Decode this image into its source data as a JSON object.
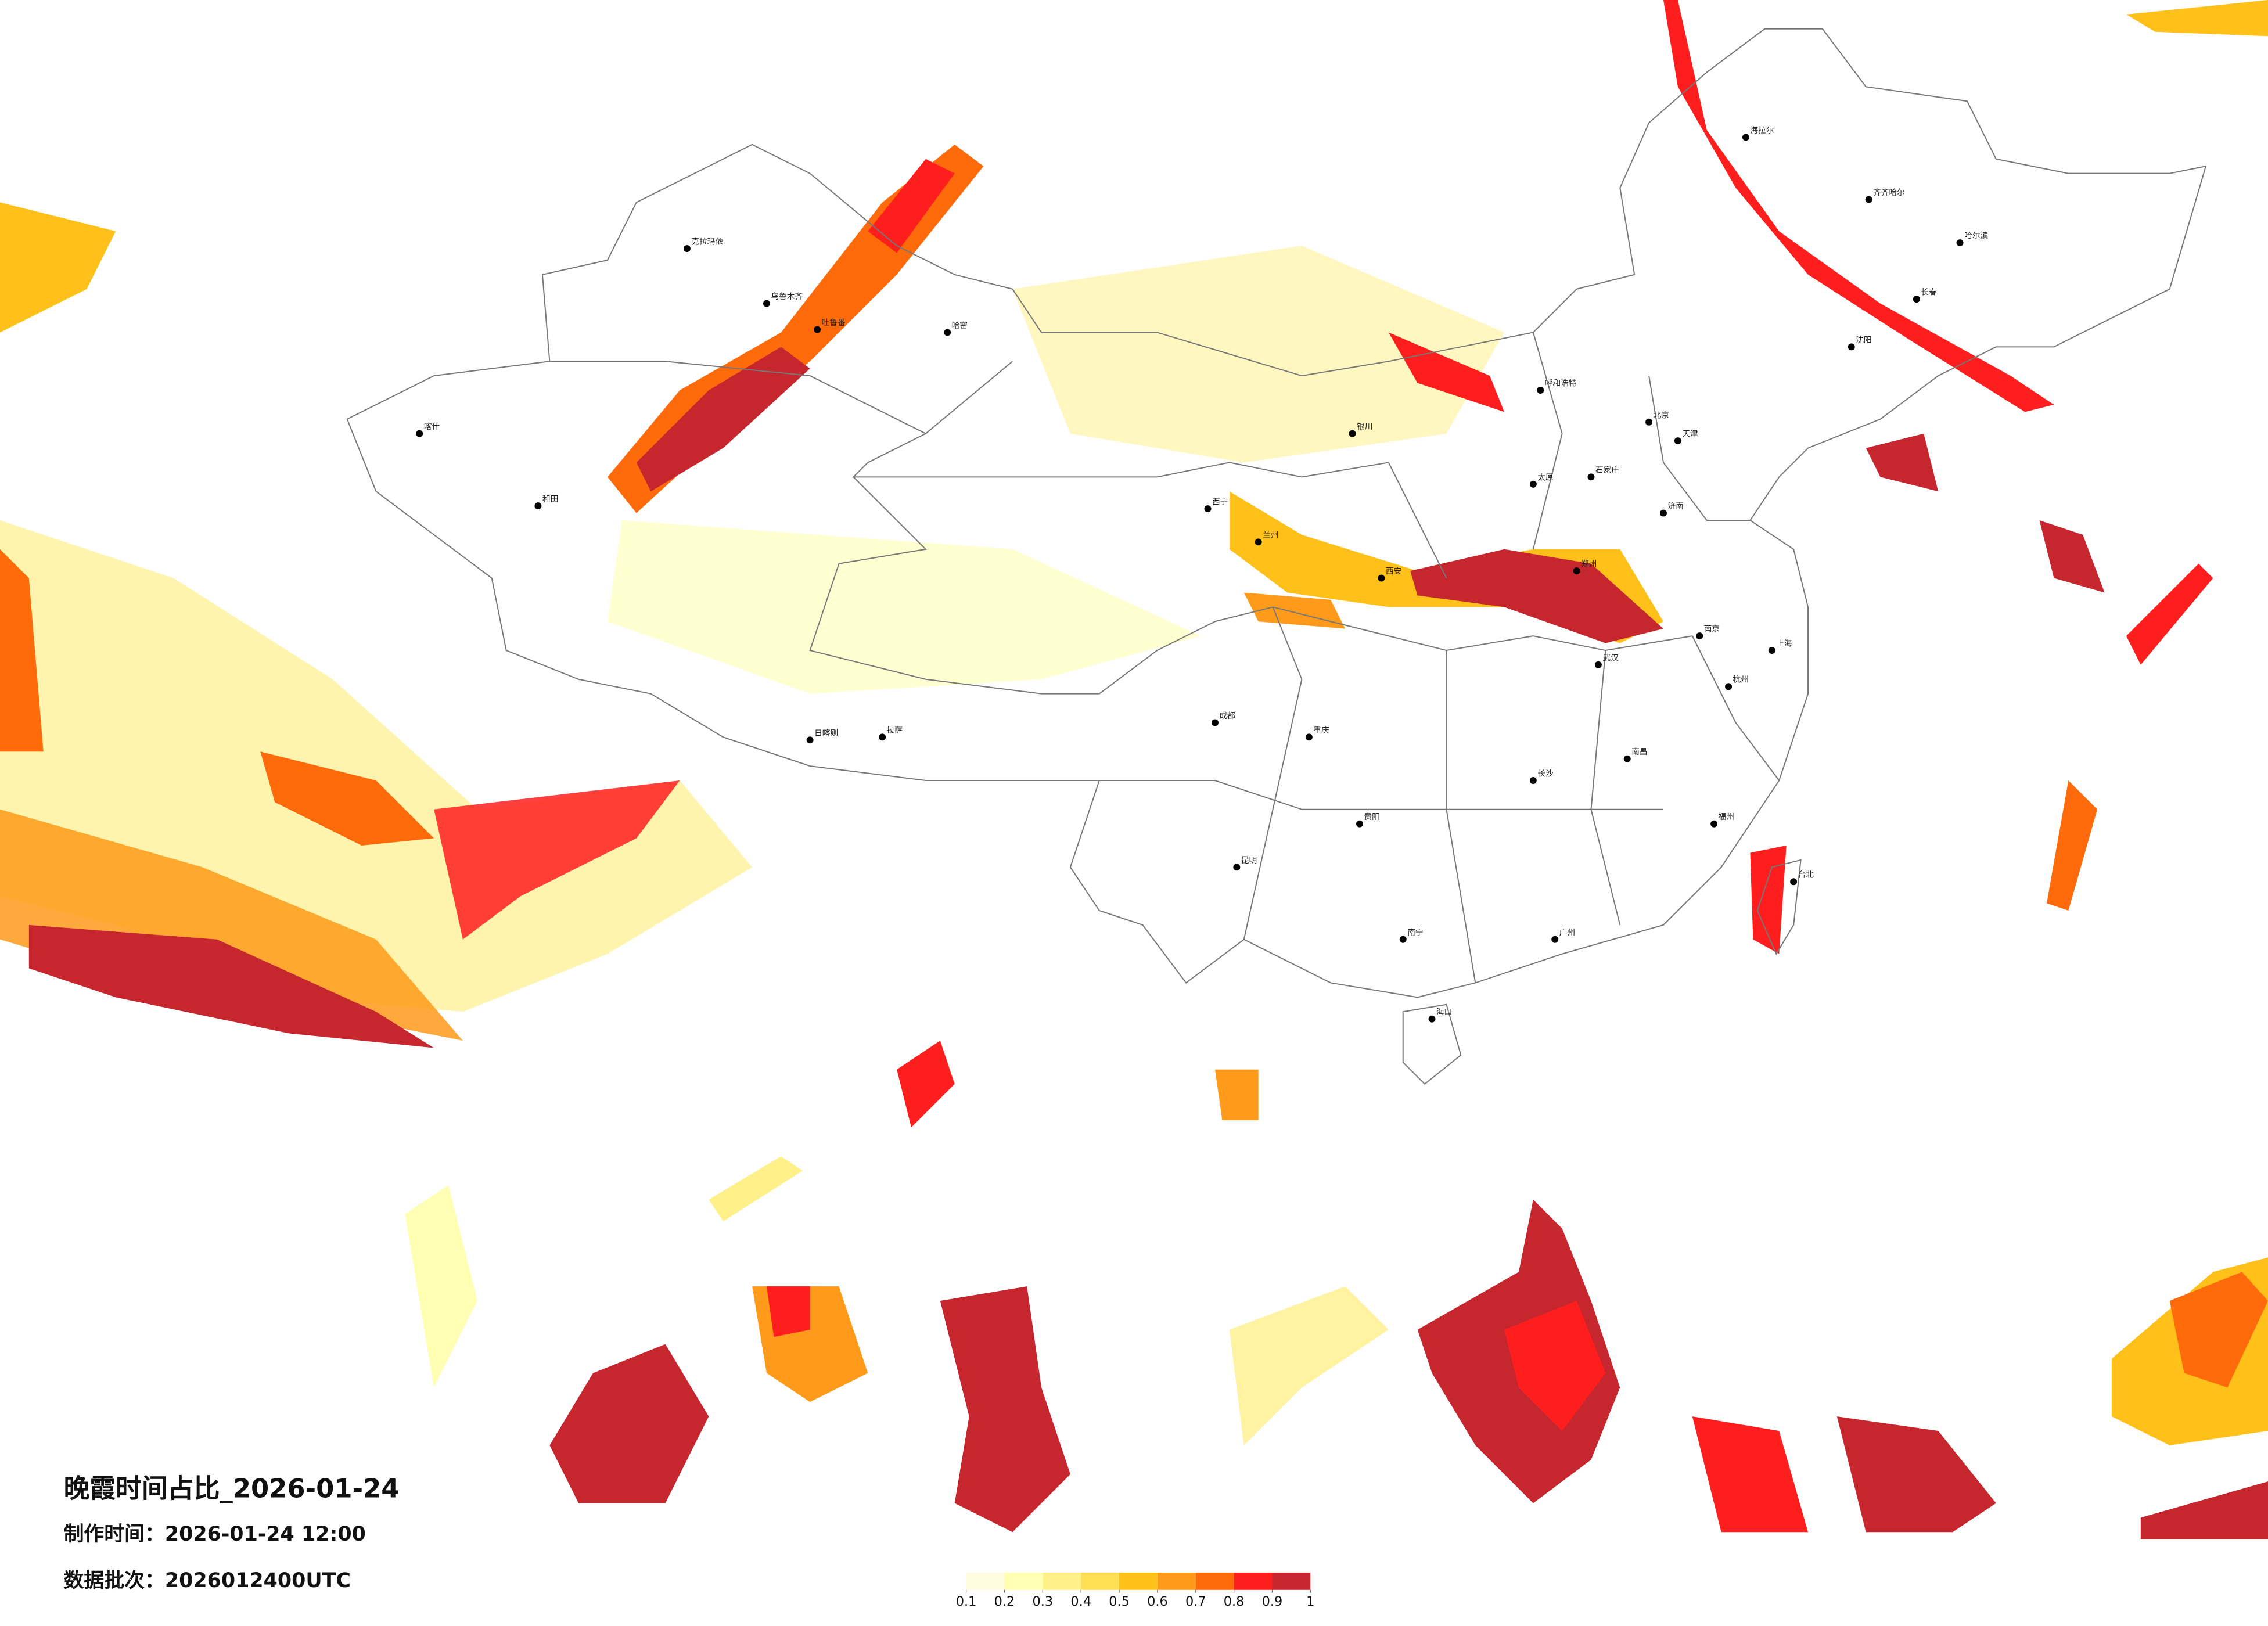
{
  "header": {
    "title": "晚霞时间占比_2026-01-24",
    "made_time": "制作时间：2026-01-24 12:00",
    "batch": "数据批次：2026012400UTC"
  },
  "legend": {
    "ticks": [
      0.1,
      0.2,
      0.3,
      0.4,
      0.5,
      0.6,
      0.7,
      0.8,
      0.9,
      1
    ],
    "colors": [
      "#fffbe0",
      "#ffffb3",
      "#fff08a",
      "#ffdd55",
      "#ffc01a",
      "#ff9a1a",
      "#ff6a0a",
      "#ff1e1e",
      "#c6262e"
    ]
  },
  "cities": [
    "克拉玛依",
    "乌鲁木齐",
    "吐鲁番",
    "哈密",
    "喀什",
    "和田",
    "拉萨",
    "日喀则",
    "西宁",
    "兰州",
    "银川",
    "呼和浩特",
    "北京",
    "天津",
    "石家庄",
    "太原",
    "郑州",
    "西安",
    "成都",
    "重庆",
    "武汉",
    "长沙",
    "南昌",
    "杭州",
    "上海",
    "南京",
    "福州",
    "广州",
    "南宁",
    "昆明",
    "贵阳",
    "海口",
    "哈尔滨",
    "长春",
    "沈阳",
    "济南",
    "台北",
    "海拉尔",
    "齐齐哈尔"
  ]
}
